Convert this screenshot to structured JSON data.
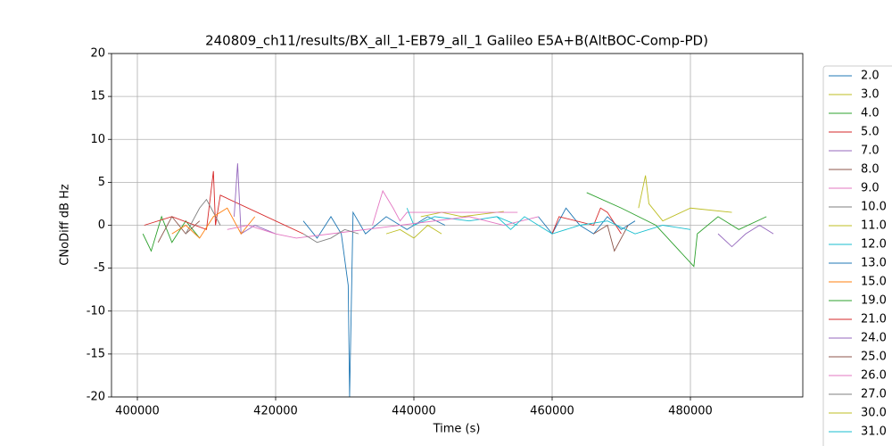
{
  "chart_data": {
    "type": "line",
    "title": "240809_ch11/results/BX_all_1-EB79_all_1 Galileo E5A+B(AltBOC-Comp-PD)",
    "x_label": "Time (s)",
    "y_label": "CNoDiff dB Hz",
    "xlim": [
      396258,
      496258
    ],
    "ylim": [
      -20,
      20
    ],
    "xticks": [
      400000,
      420000,
      440000,
      460000,
      480000
    ],
    "yticks": [
      -20,
      -15,
      -10,
      -5,
      0,
      5,
      10,
      15,
      20
    ],
    "grid": true,
    "legend": "outside-right",
    "series": [
      {
        "name": "2.0",
        "color": "#1f77b4",
        "x": [
          424000,
          426000,
          428000,
          429500,
          430500,
          430700,
          431200,
          433000,
          436000,
          439000,
          442000,
          444500
        ],
        "values": [
          0.5,
          -1.5,
          1,
          -1,
          -7,
          -20,
          1.5,
          -1,
          1,
          -0.5,
          1,
          0
        ]
      },
      {
        "name": "3.0",
        "color": "#bcbd22",
        "x": [
          441000,
          444000,
          447000,
          450000,
          453000
        ],
        "values": [
          1,
          1.5,
          1,
          1.3,
          1.6
        ]
      },
      {
        "name": "4.0",
        "color": "#2ca02c",
        "x": [
          400800,
          402000,
          403500,
          405000,
          407000,
          409000
        ],
        "values": [
          -1,
          -3,
          1,
          -2,
          0.5,
          -1.5
        ]
      },
      {
        "name": "5.0",
        "color": "#d62728",
        "x": [
          401000,
          405000,
          410000,
          411000,
          411300,
          412000,
          424000
        ],
        "values": [
          0,
          1,
          -0.5,
          6.3,
          0,
          3.5,
          -1
        ]
      },
      {
        "name": "7.0",
        "color": "#9467bd",
        "x": [
          414000,
          414500,
          415000,
          417000,
          420000
        ],
        "values": [
          1,
          7.2,
          -1,
          0,
          -1
        ]
      },
      {
        "name": "8.0",
        "color": "#8c564b",
        "x": [
          403000,
          405000,
          407000,
          409000
        ],
        "values": [
          -2,
          1,
          -1,
          0.5
        ]
      },
      {
        "name": "9.0",
        "color": "#e377c2",
        "x": [
          434000,
          435500,
          437000,
          438000,
          439000,
          455000
        ],
        "values": [
          0,
          4,
          2,
          0.5,
          1.5,
          1.5
        ]
      },
      {
        "name": "10.0",
        "color": "#7f7f7f",
        "x": [
          407000,
          409000,
          410000,
          412000
        ],
        "values": [
          -1,
          2,
          3,
          0
        ]
      },
      {
        "name": "11.0",
        "color": "#bcbd22",
        "x": [
          436000,
          438000,
          440000,
          442000,
          444000
        ],
        "values": [
          -1,
          -0.5,
          -1.5,
          0,
          -1
        ]
      },
      {
        "name": "12.0",
        "color": "#17becf",
        "x": [
          439000,
          440000,
          443000,
          448000,
          452000,
          455000
        ],
        "values": [
          2,
          0,
          1,
          0.5,
          1,
          0
        ]
      },
      {
        "name": "13.0",
        "color": "#1f77b4",
        "x": [
          458000,
          460000,
          462000,
          464000,
          466000,
          468000,
          470000,
          472000
        ],
        "values": [
          1,
          -1,
          2,
          0,
          -1,
          1,
          -0.5,
          0.5
        ]
      },
      {
        "name": "15.0",
        "color": "#ff7f0e",
        "x": [
          405000,
          407000,
          409000,
          411000,
          413000,
          415000,
          417000
        ],
        "values": [
          -1,
          0,
          -1.5,
          1,
          2,
          -1,
          1
        ]
      },
      {
        "name": "19.0",
        "color": "#2ca02c",
        "x": [
          465000,
          470000,
          475000,
          480500,
          481000,
          484000,
          487000,
          491000
        ],
        "values": [
          3.8,
          2,
          0,
          -4.8,
          -1,
          1,
          -0.5,
          1
        ]
      },
      {
        "name": "21.0",
        "color": "#d62728",
        "x": [
          460000,
          461000,
          466000,
          467000,
          468000,
          470000
        ],
        "values": [
          -1,
          1,
          0,
          2,
          1.5,
          -1
        ]
      },
      {
        "name": "24.0",
        "color": "#9467bd",
        "x": [
          484000,
          486000,
          488000,
          490000,
          492000
        ],
        "values": [
          -1,
          -2.5,
          -1,
          0,
          -1
        ]
      },
      {
        "name": "25.0",
        "color": "#8c564b",
        "x": [
          466000,
          468000,
          469000,
          471000
        ],
        "values": [
          -1,
          0,
          -3,
          0
        ]
      },
      {
        "name": "26.0",
        "color": "#e377c2",
        "x": [
          413000,
          416000,
          420000,
          423000,
          448000,
          453000,
          458000
        ],
        "values": [
          -0.5,
          0,
          -1,
          -1.5,
          1,
          0,
          1
        ]
      },
      {
        "name": "27.0",
        "color": "#7f7f7f",
        "x": [
          424000,
          426000,
          428000,
          430000,
          432000
        ],
        "values": [
          -1,
          -2,
          -1.5,
          -0.5,
          -1
        ]
      },
      {
        "name": "30.0",
        "color": "#bcbd22",
        "x": [
          472500,
          473500,
          474000,
          476000,
          480000,
          486000
        ],
        "values": [
          2,
          5.8,
          2.5,
          0.5,
          2,
          1.5
        ]
      },
      {
        "name": "31.0",
        "color": "#17becf",
        "x": [
          452000,
          454000,
          456000,
          460000,
          464000,
          468000,
          472000,
          476000,
          480000
        ],
        "values": [
          1,
          -0.5,
          1,
          -1,
          0,
          0.5,
          -1,
          0,
          -0.5
        ]
      }
    ]
  }
}
